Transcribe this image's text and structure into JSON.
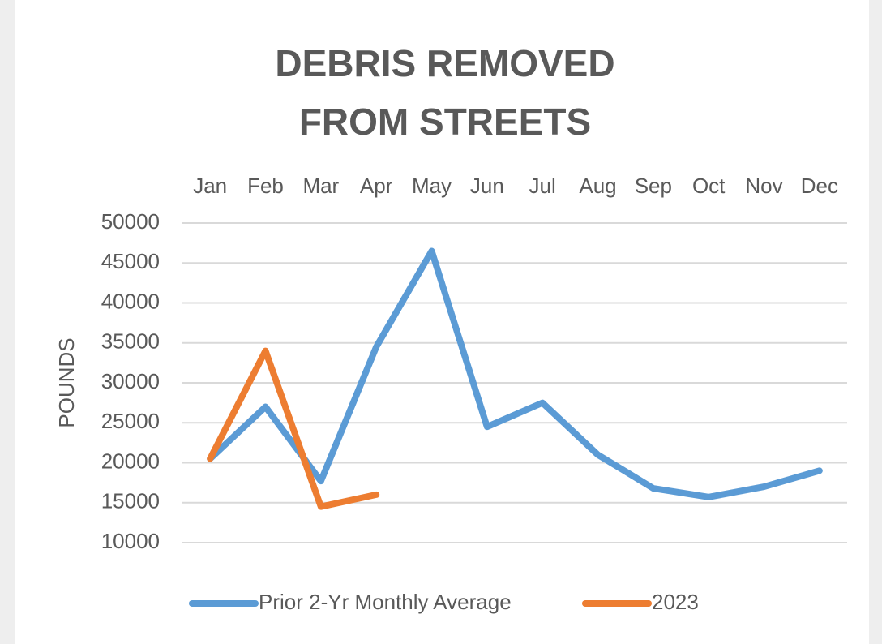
{
  "chart_data": {
    "type": "line",
    "title": "DEBRIS REMOVED FROM STREETS",
    "y_label": "POUNDS",
    "categories": [
      "Jan",
      "Feb",
      "Mar",
      "Apr",
      "May",
      "Jun",
      "Jul",
      "Aug",
      "Sep",
      "Oct",
      "Nov",
      "Dec"
    ],
    "series": [
      {
        "name": "Prior 2-Yr Monthly Average",
        "color": "#5b9bd5",
        "values": [
          20500,
          27000,
          17700,
          34500,
          46500,
          24500,
          27500,
          21000,
          16800,
          15700,
          17000,
          19000
        ]
      },
      {
        "name": "2023",
        "color": "#ed7d31",
        "values": [
          20500,
          34000,
          14500,
          16000,
          null,
          null,
          null,
          null,
          null,
          null,
          null,
          null
        ]
      }
    ],
    "ylim": [
      10000,
      50000
    ],
    "yticks": [
      10000,
      15000,
      20000,
      25000,
      30000,
      35000,
      40000,
      45000,
      50000
    ],
    "grid": true,
    "legend": "bottom"
  }
}
